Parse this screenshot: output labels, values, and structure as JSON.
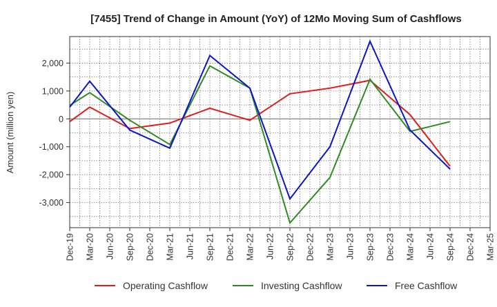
{
  "chart_data": {
    "type": "line",
    "title": "[7455]  Trend of Change in Amount (YoY) of 12Mo Moving Sum of Cashflows",
    "xlabel": "",
    "ylabel": "Amount (million yen)",
    "ylim": [
      -3900,
      2950
    ],
    "yticks": [
      2000,
      1000,
      0,
      -1000,
      -2000,
      -3000
    ],
    "ytick_labels": [
      "2,000",
      "1,000",
      "0",
      "-1,000",
      "-2,000",
      "-3,000"
    ],
    "categories": [
      "Dec-19",
      "Mar-20",
      "Jun-20",
      "Sep-20",
      "Dec-20",
      "Mar-21",
      "Jun-21",
      "Sep-21",
      "Dec-21",
      "Mar-22",
      "Jun-22",
      "Sep-22",
      "Dec-22",
      "Mar-23",
      "Jun-23",
      "Sep-23",
      "Dec-23",
      "Mar-24",
      "Jun-24",
      "Sep-24",
      "Dec-24",
      "Mar-25"
    ],
    "grid": true,
    "legend_position": "bottom",
    "series": [
      {
        "name": "Operating Cashflow",
        "color": "#e31a1c",
        "values": [
          -100,
          420,
          null,
          -350,
          null,
          -150,
          null,
          380,
          null,
          -50,
          null,
          900,
          null,
          1100,
          null,
          1380,
          null,
          150,
          null,
          -1700,
          null,
          null
        ]
      },
      {
        "name": "Investing Cashflow",
        "color": "#2e8b22",
        "values": [
          480,
          940,
          null,
          -50,
          null,
          -920,
          null,
          1900,
          null,
          1100,
          null,
          -3730,
          null,
          -2100,
          null,
          1420,
          null,
          -450,
          null,
          -100,
          null,
          null
        ]
      },
      {
        "name": "Free Cashflow",
        "color": "#0a14cc",
        "values": [
          420,
          1350,
          null,
          -400,
          null,
          -1050,
          null,
          2270,
          null,
          1100,
          null,
          -2870,
          null,
          -1000,
          null,
          2780,
          null,
          -400,
          null,
          -1800,
          null,
          null
        ]
      }
    ]
  }
}
